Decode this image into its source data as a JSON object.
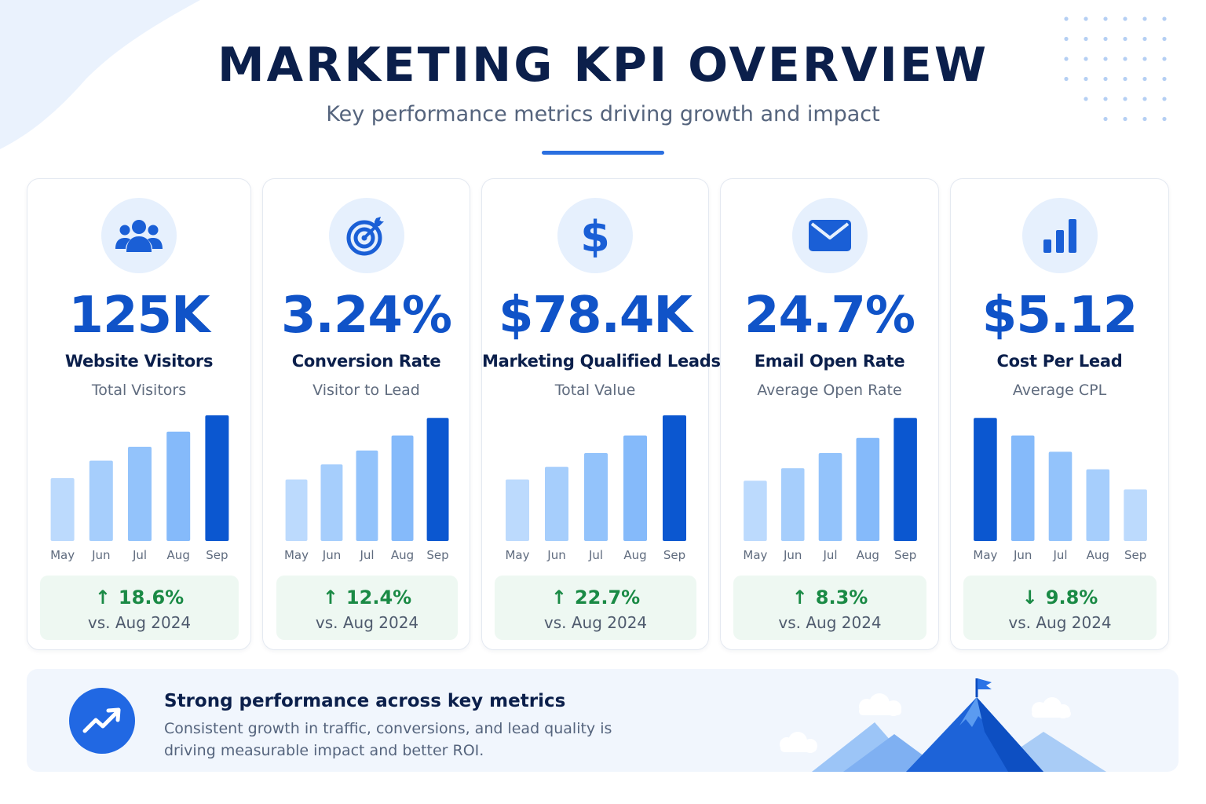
{
  "header": {
    "title": "MARKETING KPI OVERVIEW",
    "subtitle": "Key performance metrics driving growth and impact"
  },
  "colors": {
    "accent": "#1053c8",
    "bar_highlight": "#0b57d0",
    "positive": "#1a8a45",
    "bar_shades": [
      "#bcdafd",
      "#a6cefc",
      "#93c3fb",
      "#85bafa",
      "#0b57d0"
    ]
  },
  "cards": [
    {
      "icon": "users-icon",
      "value": "125K",
      "name": "Website Visitors",
      "description": "Total Visitors",
      "delta_direction": "up",
      "delta": "18.6%",
      "comparison": "vs. Aug 2024"
    },
    {
      "icon": "target-icon",
      "value": "3.24%",
      "name": "Conversion Rate",
      "description": "Visitor to Lead",
      "delta_direction": "up",
      "delta": "12.4%",
      "comparison": "vs. Aug 2024"
    },
    {
      "icon": "dollar-icon",
      "value": "$78.4K",
      "name": "Marketing Qualified Leads",
      "description": "Total Value",
      "delta_direction": "up",
      "delta": "22.7%",
      "comparison": "vs. Aug 2024"
    },
    {
      "icon": "envelope-icon",
      "value": "24.7%",
      "name": "Email Open Rate",
      "description": "Average Open Rate",
      "delta_direction": "up",
      "delta": "8.3%",
      "comparison": "vs. Aug 2024"
    },
    {
      "icon": "bar-chart-icon",
      "value": "$5.12",
      "name": "Cost Per Lead",
      "description": "Average CPL",
      "delta_direction": "down",
      "delta": "9.8%",
      "comparison": "vs. Aug 2024"
    }
  ],
  "chart_data": [
    {
      "type": "bar",
      "title": "",
      "categories": [
        "May",
        "Jun",
        "Jul",
        "Aug",
        "Sep"
      ],
      "values": [
        50,
        64,
        75,
        87,
        100
      ],
      "ylim": [
        0,
        100
      ],
      "grid": false
    },
    {
      "type": "bar",
      "title": "",
      "categories": [
        "May",
        "Jun",
        "Jul",
        "Aug",
        "Sep"
      ],
      "values": [
        49,
        61,
        72,
        84,
        98
      ],
      "ylim": [
        0,
        100
      ],
      "grid": false
    },
    {
      "type": "bar",
      "title": "",
      "categories": [
        "May",
        "Jun",
        "Jul",
        "Aug",
        "Sep"
      ],
      "values": [
        49,
        59,
        70,
        84,
        100
      ],
      "ylim": [
        0,
        100
      ],
      "grid": false
    },
    {
      "type": "bar",
      "title": "",
      "categories": [
        "May",
        "Jun",
        "Jul",
        "Aug",
        "Sep"
      ],
      "values": [
        48,
        58,
        70,
        82,
        98
      ],
      "ylim": [
        0,
        100
      ],
      "grid": false
    },
    {
      "type": "bar",
      "title": "",
      "categories": [
        "May",
        "Jun",
        "Jul",
        "Aug",
        "Sep"
      ],
      "values": [
        98,
        84,
        71,
        57,
        41
      ],
      "ylim": [
        0,
        100
      ],
      "grid": false
    }
  ],
  "banner": {
    "icon": "trend-up-icon",
    "title": "Strong performance across key metrics",
    "text": "Consistent growth in traffic, conversions, and lead quality is driving measurable impact and better ROI."
  }
}
